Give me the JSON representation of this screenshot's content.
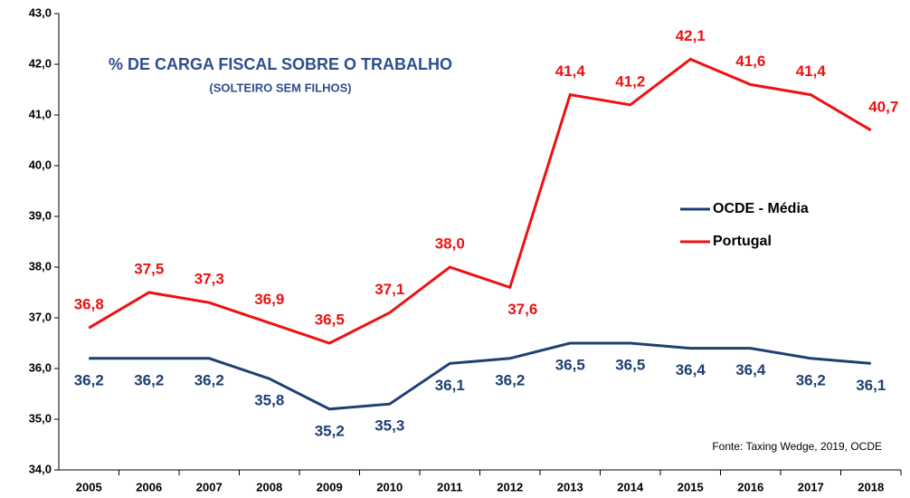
{
  "chart_data": {
    "type": "line",
    "title": "% DE CARGA FISCAL SOBRE O TRABALHO",
    "subtitle": "(SOLTEIRO SEM FILHOS)",
    "source": "Fonte: Taxing Wedge, 2019, OCDE",
    "categories": [
      "2005",
      "2006",
      "2007",
      "2008",
      "2009",
      "2010",
      "2011",
      "2012",
      "2013",
      "2014",
      "2015",
      "2016",
      "2017",
      "2018"
    ],
    "series": [
      {
        "name": "OCDE - Média",
        "color": "#1f3f73",
        "values": [
          36.2,
          36.2,
          36.2,
          35.8,
          35.2,
          35.3,
          36.1,
          36.2,
          36.5,
          36.5,
          36.4,
          36.4,
          36.2,
          36.1
        ],
        "value_labels": [
          "36,2",
          "36,2",
          "36,2",
          "35,8",
          "35,2",
          "35,3",
          "36,1",
          "36,2",
          "36,5",
          "36,5",
          "36,4",
          "36,4",
          "36,2",
          "36,1"
        ]
      },
      {
        "name": "Portugal",
        "color": "#ee1111",
        "values": [
          36.8,
          37.5,
          37.3,
          36.9,
          36.5,
          37.1,
          38.0,
          37.6,
          41.4,
          41.2,
          42.1,
          41.6,
          41.4,
          40.7
        ],
        "value_labels": [
          "36,8",
          "37,5",
          "37,3",
          "36,9",
          "36,5",
          "37,1",
          "38,0",
          "37,6",
          "41,4",
          "41,2",
          "42,1",
          "41,6",
          "41,4",
          "40,7"
        ]
      }
    ],
    "ylim": [
      34,
      43
    ],
    "yticks": [
      {
        "value": 34,
        "label": "34,0"
      },
      {
        "value": 35,
        "label": "35,0"
      },
      {
        "value": 36,
        "label": "36,0"
      },
      {
        "value": 37,
        "label": "37,0"
      },
      {
        "value": 38,
        "label": "38,0"
      },
      {
        "value": 39,
        "label": "39,0"
      },
      {
        "value": 40,
        "label": "40,0"
      },
      {
        "value": 41,
        "label": "41,0"
      },
      {
        "value": 42,
        "label": "42,0"
      },
      {
        "value": 43,
        "label": "43,0"
      }
    ],
    "grid": false
  }
}
